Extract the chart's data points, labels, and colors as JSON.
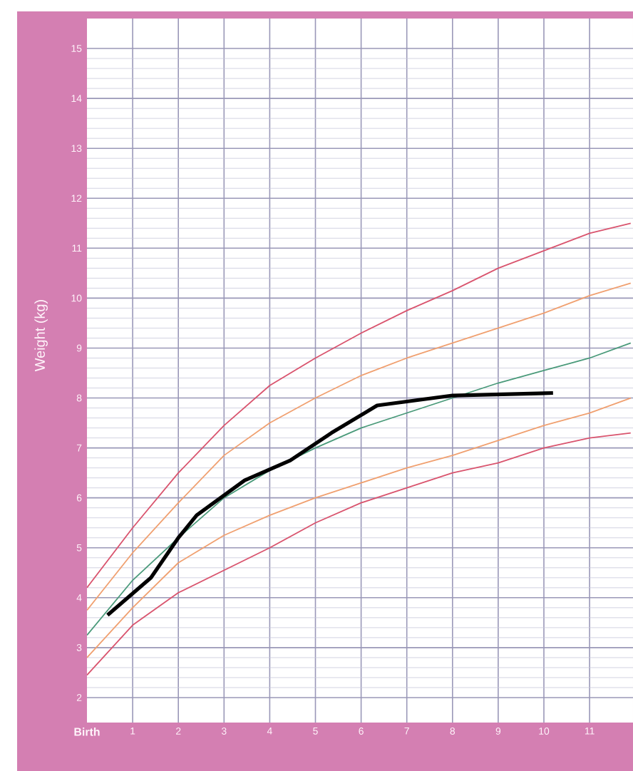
{
  "chart_data": {
    "type": "line",
    "ylabel": "Weight (kg)",
    "xlim": [
      0,
      11.95
    ],
    "ylim": [
      1.5,
      15.6
    ],
    "xticks": [
      {
        "value": 0,
        "label": "Birth"
      },
      1,
      2,
      3,
      4,
      5,
      6,
      7,
      8,
      9,
      10,
      11
    ],
    "yticks": [
      2,
      3,
      4,
      5,
      6,
      7,
      8,
      9,
      10,
      11,
      12,
      13,
      14,
      15
    ],
    "grid": true,
    "marker": "none",
    "line_style": "solid",
    "series": [
      {
        "color": "#d9546e",
        "x": [
          0,
          1,
          2,
          3,
          4,
          5,
          6,
          7,
          8,
          9,
          10,
          11,
          11.9
        ],
        "values": [
          4.2,
          5.4,
          6.5,
          7.45,
          8.25,
          8.8,
          9.3,
          9.75,
          10.15,
          10.6,
          10.95,
          11.3,
          11.5
        ]
      },
      {
        "color": "#f0a070",
        "x": [
          0,
          1,
          2,
          3,
          4,
          5,
          6,
          7,
          8,
          9,
          10,
          11,
          11.9
        ],
        "values": [
          3.75,
          4.9,
          5.9,
          6.85,
          7.5,
          8.0,
          8.45,
          8.8,
          9.1,
          9.4,
          9.7,
          10.05,
          10.3
        ]
      },
      {
        "color": "#4a9a7a",
        "x": [
          0,
          1,
          2,
          3,
          4,
          5,
          6,
          7,
          8,
          9,
          10,
          11,
          11.9
        ],
        "values": [
          3.25,
          4.35,
          5.2,
          6.0,
          6.55,
          7.0,
          7.4,
          7.7,
          8.0,
          8.3,
          8.55,
          8.8,
          9.1
        ]
      },
      {
        "color": "#f0a070",
        "x": [
          0,
          1,
          2,
          3,
          4,
          5,
          6,
          7,
          8,
          9,
          10,
          11,
          11.9
        ],
        "values": [
          2.8,
          3.8,
          4.7,
          5.25,
          5.65,
          6.0,
          6.3,
          6.6,
          6.85,
          7.15,
          7.45,
          7.7,
          8.0
        ]
      },
      {
        "color": "#d9546e",
        "x": [
          0,
          1,
          2,
          3,
          4,
          5,
          6,
          7,
          8,
          9,
          10,
          11,
          11.9
        ],
        "values": [
          2.45,
          3.45,
          4.1,
          4.55,
          5.0,
          5.5,
          5.9,
          6.2,
          6.5,
          6.7,
          7.0,
          7.2,
          7.3
        ]
      },
      {
        "color": "#000000",
        "x": [
          0.45,
          1.4,
          2.0,
          2.4,
          3.45,
          4.45,
          5.35,
          6.35,
          8.0,
          10.2
        ],
        "values": [
          3.65,
          4.4,
          5.2,
          5.65,
          6.35,
          6.75,
          7.3,
          7.85,
          8.05,
          8.1
        ]
      }
    ]
  }
}
